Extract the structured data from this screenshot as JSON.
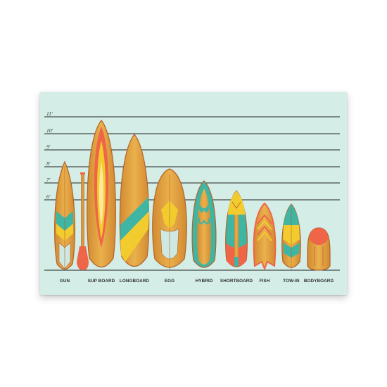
{
  "height_scale": [
    "11'",
    "10'",
    "9'",
    "8'",
    "7'",
    "6'"
  ],
  "boards": [
    "GUN",
    "SUP BOARD",
    "LONGBOARD",
    "EGG",
    "HYBRID",
    "SHORTBOARD",
    "FISH",
    "TOW-IN",
    "BODYBOARD"
  ],
  "colors": {
    "background": "#d4ede7",
    "wood": "#e0a33c",
    "wood_dark": "#b3622a",
    "teal": "#3fb5a3",
    "yellow": "#f2cc2f",
    "coral": "#ef6548",
    "lines": "#222222"
  }
}
